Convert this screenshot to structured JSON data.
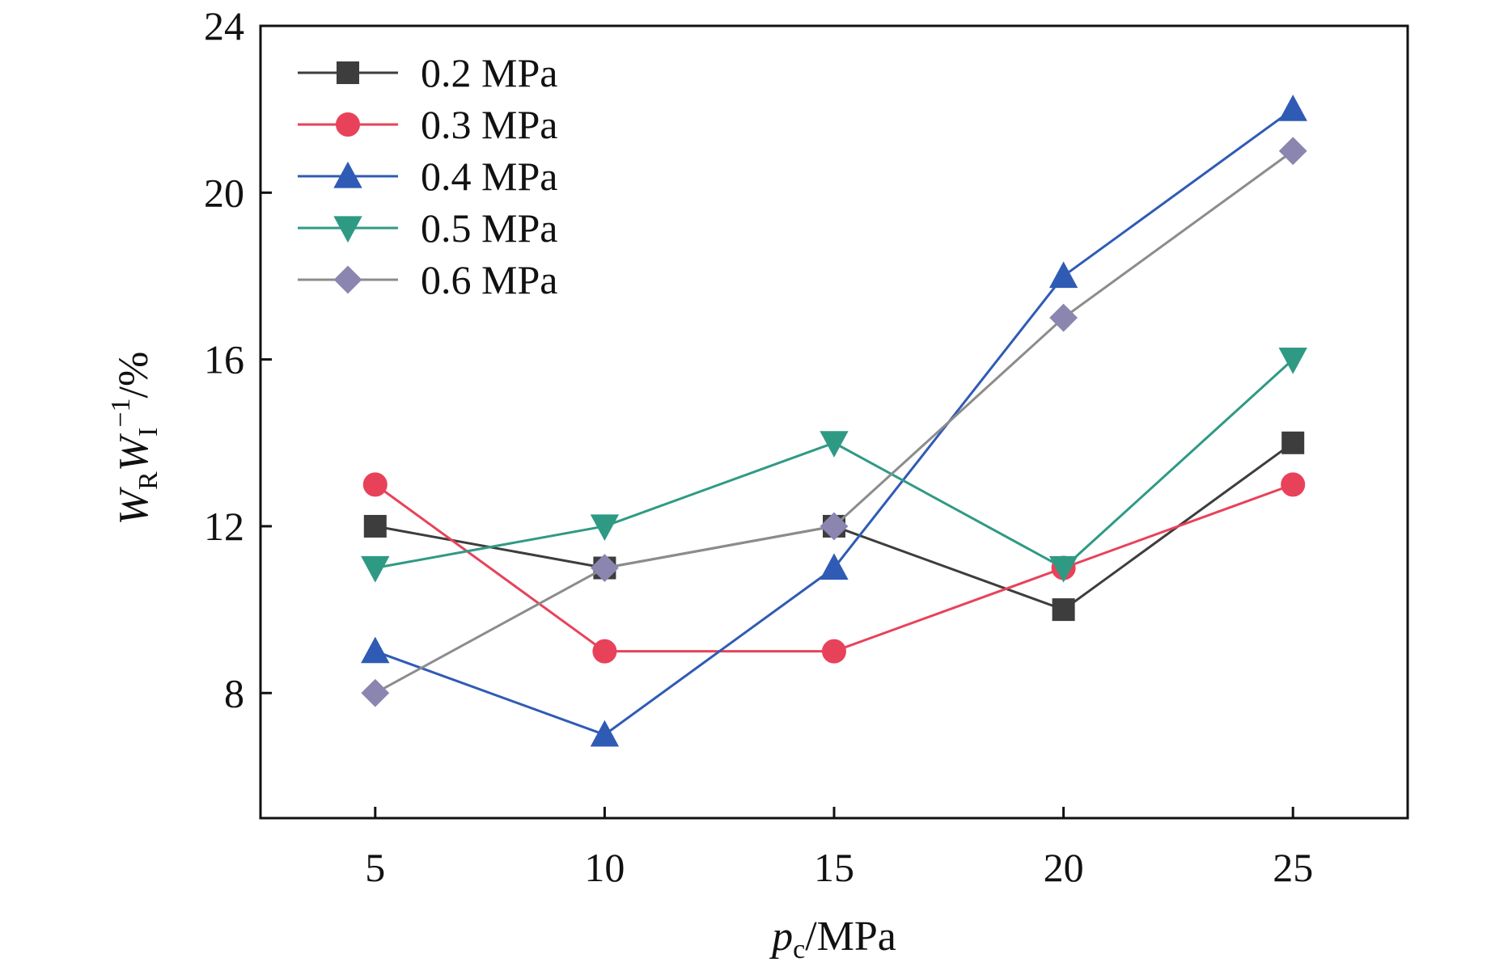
{
  "chart_data": {
    "type": "line",
    "x": [
      5,
      10,
      15,
      20,
      25
    ],
    "xlabel": {
      "var": "p",
      "sub": "c",
      "unit": "/MPa"
    },
    "ylabel": {
      "w1": "W",
      "sub1": "R",
      "w2": "W",
      "sub2": "I",
      "sup2": "−1",
      "unit": "/%"
    },
    "xlim": [
      2.5,
      27.5
    ],
    "ylim": [
      5,
      24
    ],
    "xticks": [
      5,
      10,
      15,
      20,
      25
    ],
    "yticks": [
      8,
      12,
      16,
      20,
      24
    ],
    "grid": false,
    "legend_position": "top-left",
    "series": [
      {
        "name": "0.2 MPa",
        "values": [
          12,
          11,
          12,
          10,
          14
        ],
        "color": "#3d3d3d",
        "marker": "square"
      },
      {
        "name": "0.3 MPa",
        "values": [
          13,
          9,
          9,
          11,
          13
        ],
        "color": "#e8425a",
        "marker": "circle"
      },
      {
        "name": "0.4 MPa",
        "values": [
          9,
          7,
          11,
          18,
          22
        ],
        "color": "#2f5bb5",
        "marker": "triangle-up"
      },
      {
        "name": "0.5 MPa",
        "values": [
          11,
          12,
          14,
          11,
          16
        ],
        "color": "#2f9a84",
        "marker": "triangle-down"
      },
      {
        "name": "0.6 MPa",
        "values": [
          8,
          11,
          12,
          17,
          21
        ],
        "color": "#8a86b0",
        "marker": "diamond",
        "line_color": "#8c8c8c"
      }
    ]
  }
}
